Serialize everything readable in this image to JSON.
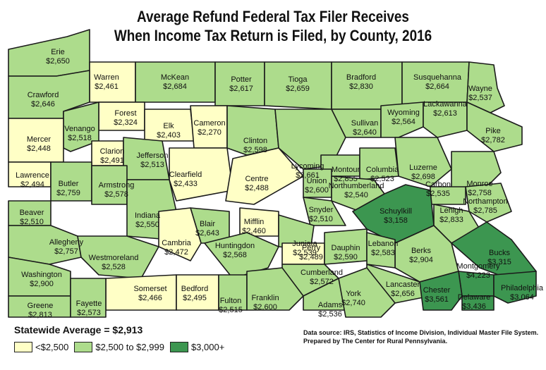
{
  "title": {
    "line1": "Average Refund Federal Tax Filer Receives",
    "line2": "When Income Tax Return is Filed, by County, 2016"
  },
  "statewide": "Statewide Average = $2,913",
  "legend": [
    {
      "label": "<$2,500",
      "color": "#ffffc6"
    },
    {
      "label": "$2,500 to $2,999",
      "color": "#addc8c"
    },
    {
      "label": "$3,000+",
      "color": "#3c9650"
    }
  ],
  "source": {
    "line1": "Data source: IRS, Statistics of Income Division, Individual Master File System.",
    "line2": "Prepared by The Center for Rural Pennsylvania."
  },
  "counties": [
    {
      "name": "Erie",
      "value": "$2,650",
      "bin": 1
    },
    {
      "name": "Warren",
      "value": "$2,461",
      "bin": 0
    },
    {
      "name": "McKean",
      "value": "$2,684",
      "bin": 1
    },
    {
      "name": "Potter",
      "value": "$2,617",
      "bin": 1
    },
    {
      "name": "Tioga",
      "value": "$2,659",
      "bin": 1
    },
    {
      "name": "Bradford",
      "value": "$2,830",
      "bin": 1
    },
    {
      "name": "Susquehanna",
      "value": "$2,664",
      "bin": 1
    },
    {
      "name": "Wayne",
      "value": "$2,537",
      "bin": 1
    },
    {
      "name": "Crawford",
      "value": "$2,646",
      "bin": 1
    },
    {
      "name": "Forest",
      "value": "$2,324",
      "bin": 0
    },
    {
      "name": "Elk",
      "value": "$2,403",
      "bin": 0
    },
    {
      "name": "Cameron",
      "value": "$2,270",
      "bin": 0
    },
    {
      "name": "Venango",
      "value": "$2,518",
      "bin": 1
    },
    {
      "name": "Mercer",
      "value": "$2,448",
      "bin": 0
    },
    {
      "name": "Clarion",
      "value": "$2,491",
      "bin": 0
    },
    {
      "name": "Jefferson",
      "value": "$2,513",
      "bin": 1
    },
    {
      "name": "Clinton",
      "value": "$2,598",
      "bin": 1
    },
    {
      "name": "Lycoming",
      "value": "$2,661",
      "bin": 1
    },
    {
      "name": "Sullivan",
      "value": "$2,640",
      "bin": 1
    },
    {
      "name": "Wyoming",
      "value": "$2,564",
      "bin": 1
    },
    {
      "name": "Lackawanna",
      "value": "$2,613",
      "bin": 1
    },
    {
      "name": "Pike",
      "value": "$2,782",
      "bin": 1
    },
    {
      "name": "Lawrence",
      "value": "$2,494",
      "bin": 0
    },
    {
      "name": "Butler",
      "value": "$2,759",
      "bin": 1
    },
    {
      "name": "Armstrong",
      "value": "$2,578",
      "bin": 1
    },
    {
      "name": "Clearfield",
      "value": "$2,433",
      "bin": 0
    },
    {
      "name": "Centre",
      "value": "$2,488",
      "bin": 0
    },
    {
      "name": "Montour",
      "value": "$2,855",
      "bin": 1
    },
    {
      "name": "Columbia",
      "value": "$2,523",
      "bin": 1
    },
    {
      "name": "Luzerne",
      "value": "$2,698",
      "bin": 1
    },
    {
      "name": "Monroe",
      "value": "$2,758",
      "bin": 1
    },
    {
      "name": "Union",
      "value": "$2,600",
      "bin": 1
    },
    {
      "name": "Northumberland",
      "value": "$2,540",
      "bin": 1
    },
    {
      "name": "Carbon",
      "value": "$2,535",
      "bin": 1
    },
    {
      "name": "Northampton",
      "value": "$2,785",
      "bin": 1
    },
    {
      "name": "Schuylkill",
      "value": "$3,158",
      "bin": 2
    },
    {
      "name": "Beaver",
      "value": "$2,510",
      "bin": 1
    },
    {
      "name": "Indiana",
      "value": "$2,550",
      "bin": 1
    },
    {
      "name": "Snyder",
      "value": "$2,510",
      "bin": 1
    },
    {
      "name": "Lehigh",
      "value": "$2,833",
      "bin": 1
    },
    {
      "name": "Allegheny",
      "value": "$2,757",
      "bin": 1
    },
    {
      "name": "Blair",
      "value": "$2,643",
      "bin": 1
    },
    {
      "name": "Mifflin",
      "value": "$2,460",
      "bin": 0
    },
    {
      "name": "Cambria",
      "value": "$2,472",
      "bin": 0
    },
    {
      "name": "Juniata",
      "value": "$2,539",
      "bin": 1
    },
    {
      "name": "Huntingdon",
      "value": "$2,568",
      "bin": 1
    },
    {
      "name": "Berks",
      "value": "$2,904",
      "bin": 1
    },
    {
      "name": "Bucks",
      "value": "$3,315",
      "bin": 2
    },
    {
      "name": "Perry",
      "value": "$2,489",
      "bin": 0
    },
    {
      "name": "Dauphin",
      "value": "$2,590",
      "bin": 1
    },
    {
      "name": "Lebanon",
      "value": "$2,583",
      "bin": 1
    },
    {
      "name": "Westmoreland",
      "value": "$2,528",
      "bin": 1
    },
    {
      "name": "Montgomery",
      "value": "$4,223",
      "bin": 2
    },
    {
      "name": "Washington",
      "value": "$2,900",
      "bin": 1
    },
    {
      "name": "Cumberland",
      "value": "$2,572",
      "bin": 1
    },
    {
      "name": "Lancaster",
      "value": "$2,656",
      "bin": 1
    },
    {
      "name": "Philadelphia",
      "value": "$3,064",
      "bin": 2
    },
    {
      "name": "Somerset",
      "value": "$2,466",
      "bin": 0
    },
    {
      "name": "Bedford",
      "value": "$2,495",
      "bin": 0
    },
    {
      "name": "Chester",
      "value": "$3,561",
      "bin": 2
    },
    {
      "name": "Delaware",
      "value": "$3,436",
      "bin": 2
    },
    {
      "name": "Greene",
      "value": "$2,813",
      "bin": 1
    },
    {
      "name": "Fayette",
      "value": "$2,573",
      "bin": 1
    },
    {
      "name": "Fulton",
      "value": "$2,515",
      "bin": 1
    },
    {
      "name": "Franklin",
      "value": "$2,600",
      "bin": 1
    },
    {
      "name": "Adams",
      "value": "$2,536",
      "bin": 1
    },
    {
      "name": "York",
      "value": "$2,740",
      "bin": 1
    }
  ]
}
